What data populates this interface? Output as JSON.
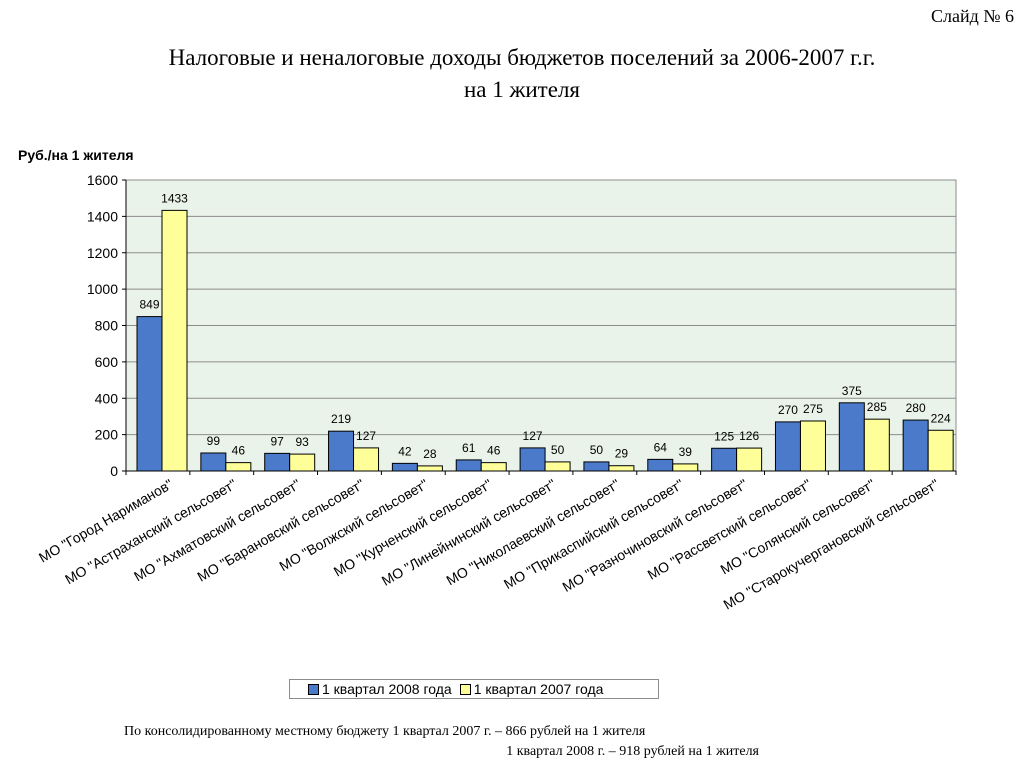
{
  "slide_number": "Слайд № 6",
  "title_line1": "Налоговые и неналоговые доходы бюджетов поселений за 2006-2007 г.г.",
  "title_line2": "на 1 жителя",
  "footnote": {
    "line1": "По консолидированному местному бюджету 1 квартал 2007 г. – 866 рублей на 1 жителя",
    "line2": "1 квартал 2008 г. – 918 рублей на 1 жителя"
  },
  "chart_data": {
    "type": "bar",
    "ylabel": "Руб./на 1 жителя",
    "ylim": [
      0,
      1600
    ],
    "yticks": [
      0,
      200,
      400,
      600,
      800,
      1000,
      1200,
      1400,
      1600
    ],
    "grid": true,
    "legend_position": "bottom",
    "categories": [
      "МО \"Город Нариманов\"",
      "МО \"Астраханский сельсовет\"",
      "МО \"Ахматовский сельсовет\"",
      "МО \"Барановский сельсовет\"",
      "МО \"Волжский сельсовет\"",
      "МО \"Курченский сельсовет\"",
      "МО \"Линейнинский сельсовет\"",
      "МО \"Николаевский сельсовет\"",
      "МО \"Прикаспийский сельсовет\"",
      "МО \"Разночиновский сельсовет\"",
      "МО \"Рассветский сельсовет\"",
      "МО \"Солянский сельсовет\"",
      "МО \"Старокучергановский сельсовет\""
    ],
    "series": [
      {
        "name": "1 квартал 2008 года",
        "color": "#4a7ac9",
        "values": [
          849,
          99,
          97,
          219,
          42,
          61,
          127,
          50,
          64,
          125,
          270,
          375,
          280
        ]
      },
      {
        "name": "1 квартал 2007 года",
        "color": "#ffff99",
        "values": [
          1433,
          46,
          93,
          127,
          28,
          46,
          50,
          29,
          39,
          126,
          275,
          285,
          224
        ]
      }
    ]
  }
}
